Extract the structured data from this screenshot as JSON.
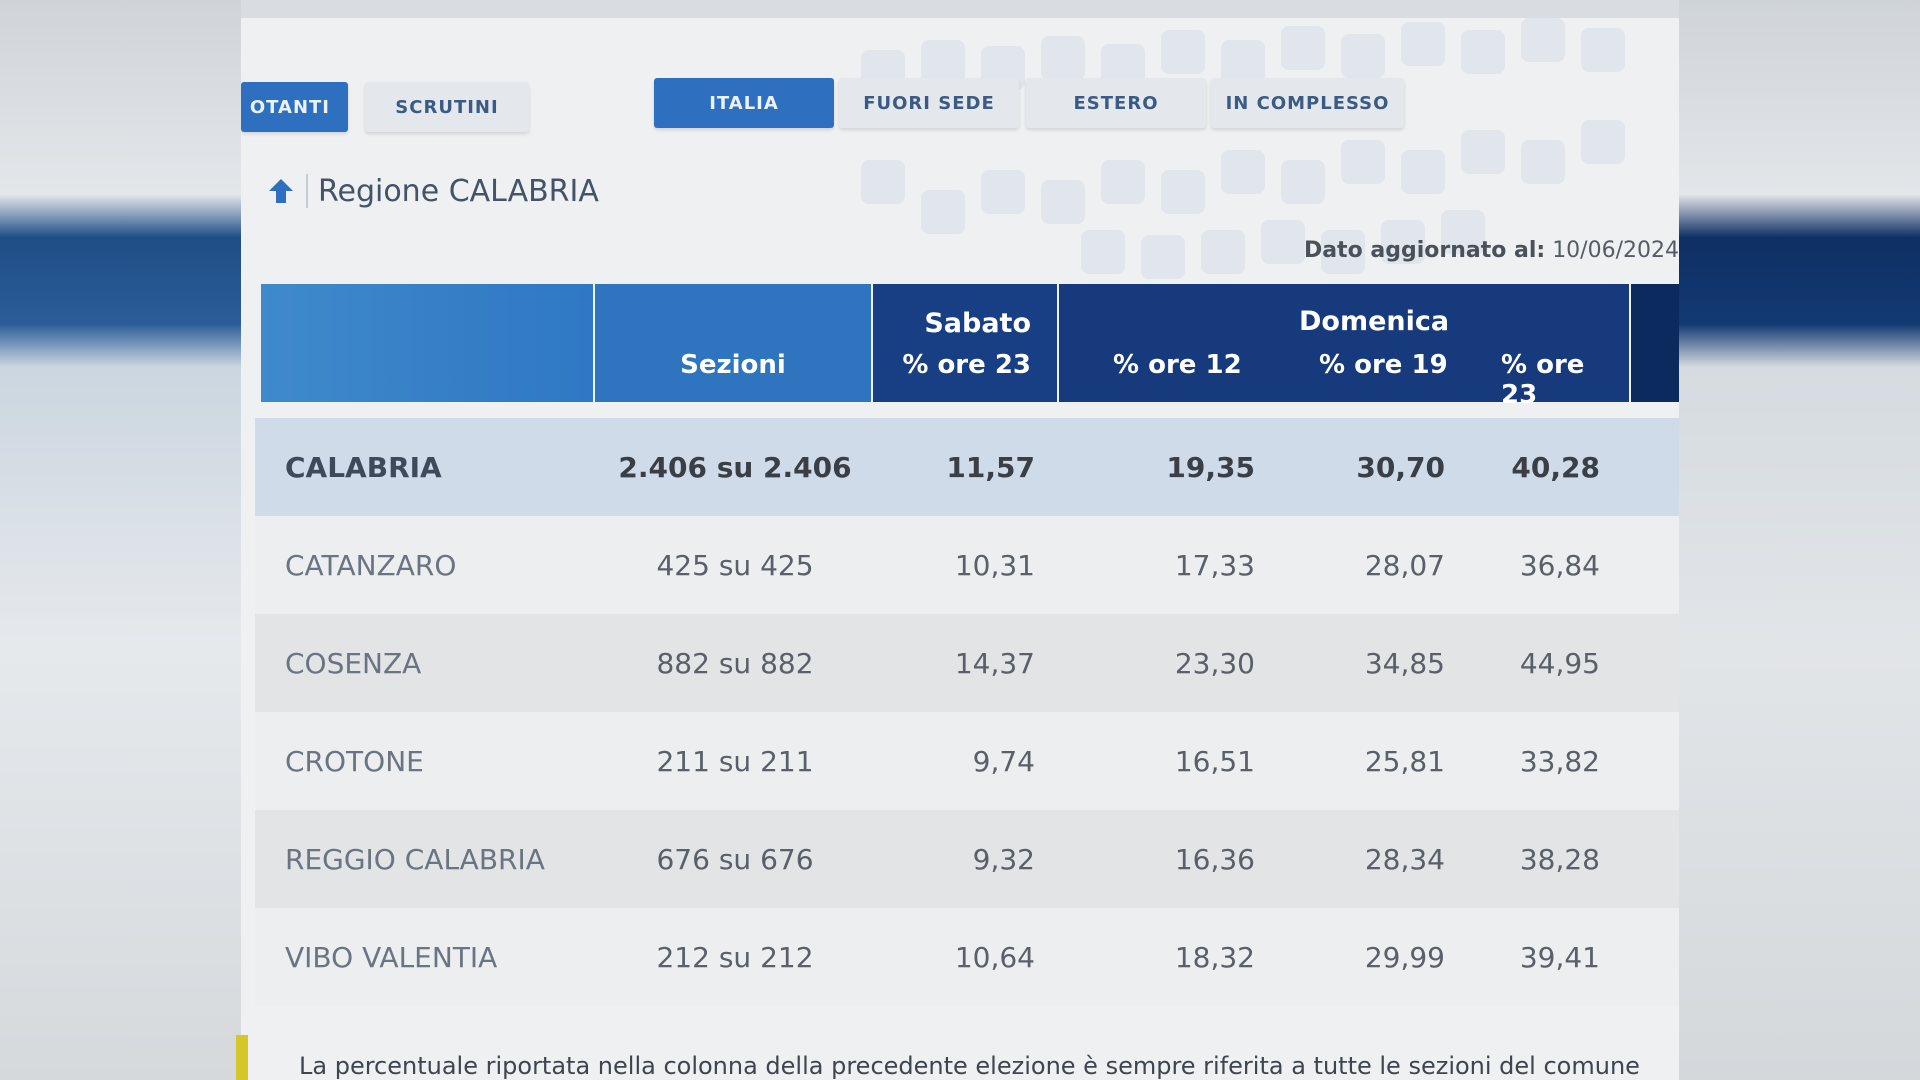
{
  "tabs": {
    "votanti": "OTANTI",
    "scrutini": "SCRUTINI",
    "italia": "ITALIA",
    "fuori_sede": "FUORI SEDE",
    "estero": "ESTERO",
    "in_complesso": "IN COMPLESSO"
  },
  "region": {
    "title": "Regione CALABRIA"
  },
  "updated": {
    "label": "Dato aggiornato al:",
    "value": "10/06/2024"
  },
  "table": {
    "headers": {
      "sezioni": "Sezioni",
      "sabato": "Sabato",
      "sabato_sub": "% ore 23",
      "domenica": "Domenica",
      "dom_12": "% ore 12",
      "dom_19": "% ore 19",
      "dom_23": "% ore 23"
    },
    "rows": [
      {
        "name": "CALABRIA",
        "sezioni": "2.406 su 2.406",
        "sab23": "11,57",
        "dom12": "19,35",
        "dom19": "30,70",
        "dom23": "40,28"
      },
      {
        "name": "CATANZARO",
        "sezioni": "425 su 425",
        "sab23": "10,31",
        "dom12": "17,33",
        "dom19": "28,07",
        "dom23": "36,84"
      },
      {
        "name": "COSENZA",
        "sezioni": "882 su 882",
        "sab23": "14,37",
        "dom12": "23,30",
        "dom19": "34,85",
        "dom23": "44,95"
      },
      {
        "name": "CROTONE",
        "sezioni": "211 su 211",
        "sab23": "9,74",
        "dom12": "16,51",
        "dom19": "25,81",
        "dom23": "33,82"
      },
      {
        "name": "REGGIO CALABRIA",
        "sezioni": "676 su 676",
        "sab23": "9,32",
        "dom12": "16,36",
        "dom19": "28,34",
        "dom23": "38,28"
      },
      {
        "name": "VIBO VALENTIA",
        "sezioni": "212 su 212",
        "sab23": "10,64",
        "dom12": "18,32",
        "dom19": "29,99",
        "dom23": "39,41"
      }
    ]
  },
  "footnote": "La percentuale riportata nella colonna della precedente elezione è sempre riferita a tutte le sezioni del comune",
  "colors": {
    "accent_blue": "#2f6fc0",
    "header_dark": "#163a7c",
    "total_row": "#cfdbe8"
  }
}
